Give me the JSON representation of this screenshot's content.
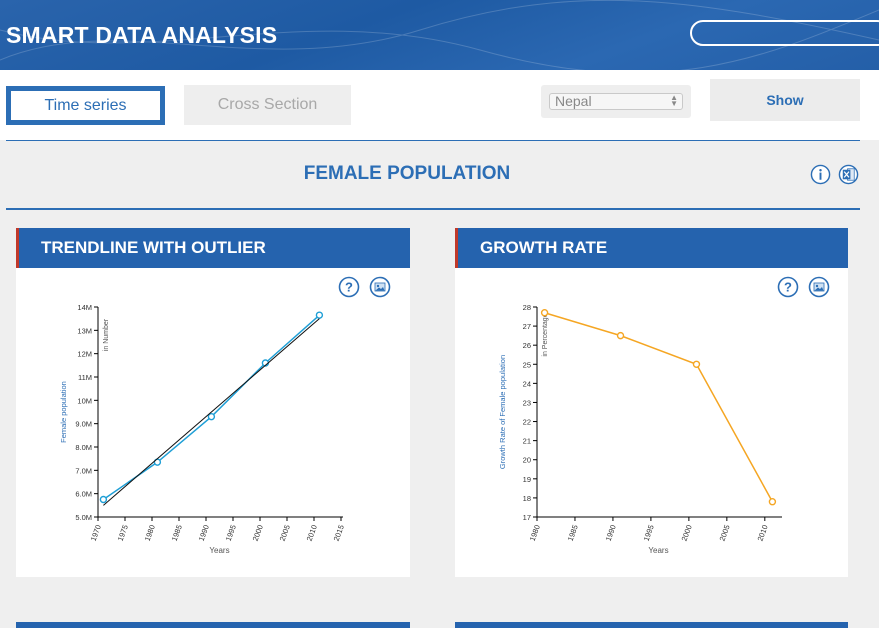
{
  "header": {
    "title": "SMART DATA ANALYSIS",
    "search_placeholder": ""
  },
  "toolbar": {
    "tab_time_series": "Time series",
    "tab_cross_section": "Cross Section",
    "country": "Nepal",
    "show_label": "Show"
  },
  "section": {
    "title": "FEMALE POPULATION"
  },
  "icons": {
    "info": "info-circle-icon",
    "excel": "excel-export-icon",
    "help": "help-question-icon",
    "image": "image-download-icon"
  },
  "colors": {
    "brand": "#2563ae",
    "accent_line": "#2c6eb5",
    "series_blue": "#1f9fd6",
    "series_orange": "#f5a623",
    "header_edge": "#c0392b"
  },
  "panels": [
    {
      "title": "TRENDLINE WITH OUTLIER"
    },
    {
      "title": "GROWTH RATE"
    }
  ],
  "chart_data": [
    {
      "type": "line",
      "title": "TRENDLINE WITH OUTLIER",
      "xlabel": "Years",
      "ylabel": "Female population",
      "ylabel2": "in Number",
      "xlim": [
        1970,
        2015
      ],
      "ylim": [
        5000000,
        14000000
      ],
      "x_ticks": [
        1970,
        1975,
        1980,
        1985,
        1990,
        1995,
        2000,
        2005,
        2010,
        2015
      ],
      "y_ticks": [
        5000000,
        6000000,
        7000000,
        8000000,
        9000000,
        10000000,
        11000000,
        12000000,
        13000000,
        14000000
      ],
      "y_tick_labels": [
        "5.0M",
        "6.0M",
        "7.0M",
        "8.0M",
        "9.0M",
        "10M",
        "11M",
        "12M",
        "13M",
        "14M"
      ],
      "series": [
        {
          "x": [
            1971,
            1981,
            1991,
            2001,
            2011
          ],
          "values": [
            5750000,
            7350000,
            9300000,
            11600000,
            13650000
          ],
          "color": "#1f9fd6",
          "markers": true
        },
        {
          "x": [
            1971,
            2011
          ],
          "values": [
            5500000,
            13500000
          ],
          "color": "#111111",
          "markers": false
        }
      ]
    },
    {
      "type": "line",
      "title": "GROWTH RATE",
      "xlabel": "Years",
      "ylabel": "Growth Rate of Female population",
      "ylabel2": "in Percentage",
      "xlim": [
        1980,
        2012
      ],
      "ylim": [
        17,
        28
      ],
      "x_ticks": [
        1980,
        1985,
        1990,
        1995,
        2000,
        2005,
        2010
      ],
      "y_ticks": [
        17,
        18,
        19,
        20,
        21,
        22,
        23,
        24,
        25,
        26,
        27,
        28
      ],
      "series": [
        {
          "x": [
            1981,
            1991,
            2001,
            2011
          ],
          "values": [
            27.7,
            26.5,
            25.0,
            17.8
          ],
          "color": "#f5a623",
          "markers": true
        }
      ]
    }
  ]
}
